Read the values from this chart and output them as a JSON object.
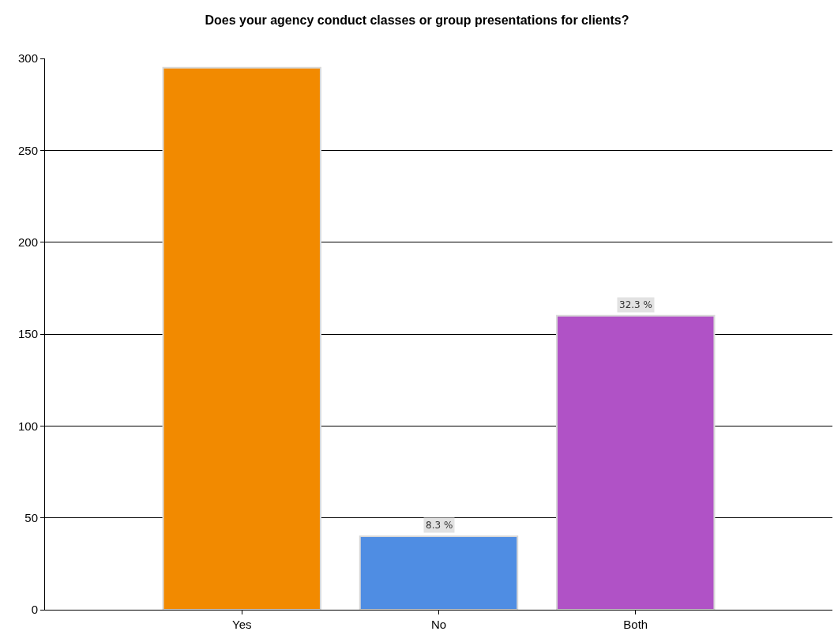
{
  "chart_data": {
    "type": "bar",
    "title": "Does your agency conduct classes or group presentations for clients?",
    "categories": [
      "Yes",
      "No",
      "Both"
    ],
    "values": [
      295,
      40,
      160
    ],
    "colors": [
      "#f28a00",
      "#4f8de3",
      "#b052c6"
    ],
    "annotations": [
      {
        "text": "8.3 %",
        "x": "No",
        "y": 40
      },
      {
        "text": "32.3 %",
        "x": "Both",
        "y": 160
      }
    ],
    "ylim": [
      0,
      300
    ],
    "yticks": [
      0,
      50,
      100,
      150,
      200,
      250,
      300
    ],
    "grid": "y"
  }
}
